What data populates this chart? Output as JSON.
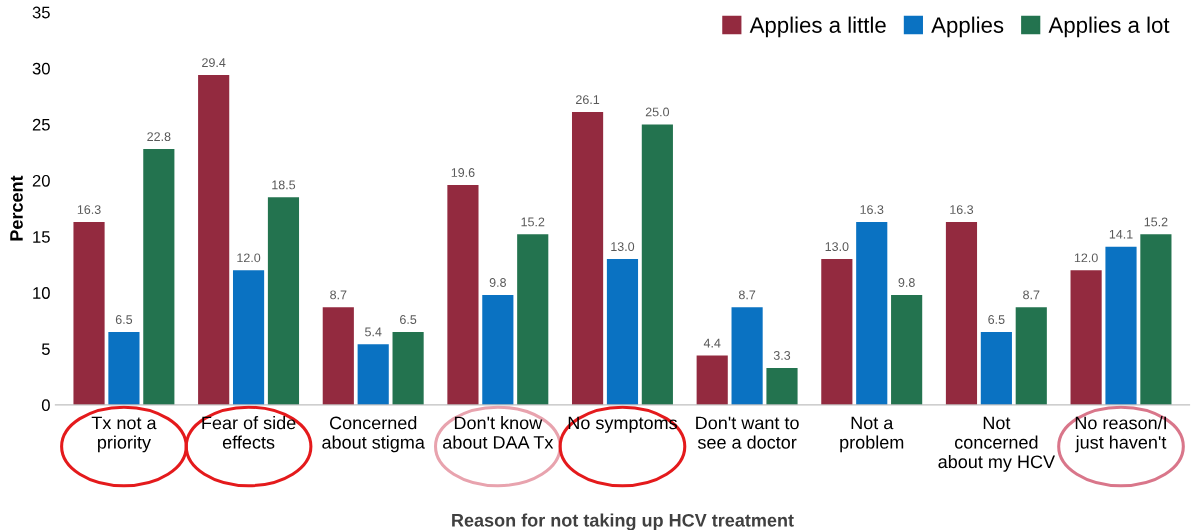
{
  "chart_data": {
    "type": "bar",
    "xlabel": "Reason for not taking up HCV treatment",
    "ylabel": "Percent",
    "categories": [
      "Tx not a\npriority",
      "Fear of side\neffects",
      "Concerned\nabout stigma",
      "Don't know\nabout DAA Tx",
      "No symptoms",
      "Don't want to\nsee a doctor",
      "Not a\nproblem",
      "Not\nconcerned\nabout my HCV",
      "No reason/I\njust haven't"
    ],
    "series": [
      {
        "name": "Applies a little",
        "color": "#932a3f",
        "values": [
          16.3,
          29.4,
          8.7,
          19.6,
          26.1,
          4.4,
          13.0,
          16.3,
          12.0
        ],
        "value_labels": [
          "16.3",
          "29.4",
          "8.7",
          "19.6",
          "26.1",
          "4.4",
          "13.0",
          "16.3",
          "12.0"
        ]
      },
      {
        "name": "Applies",
        "color": "#0a72c2",
        "values": [
          6.5,
          12.0,
          5.4,
          9.8,
          13.0,
          8.7,
          16.3,
          6.5,
          14.1
        ],
        "value_labels": [
          "6.5",
          "12.0",
          "5.4",
          "9.8",
          "13.0",
          "8.7",
          "16.3",
          "6.5",
          "14.1"
        ]
      },
      {
        "name": "Applies a lot",
        "color": "#23734f",
        "values": [
          22.8,
          18.5,
          6.5,
          15.2,
          25.0,
          3.3,
          9.8,
          8.7,
          15.2
        ],
        "value_labels": [
          "22.8",
          "18.5",
          "6.5",
          "15.2",
          "25.0",
          "3.3",
          "9.8",
          "8.7",
          "15.2"
        ]
      }
    ],
    "ylim": [
      0,
      35
    ],
    "yticks": [
      0,
      5,
      10,
      15,
      20,
      25,
      30,
      35
    ],
    "legend": "top right",
    "grid": false
  }
}
